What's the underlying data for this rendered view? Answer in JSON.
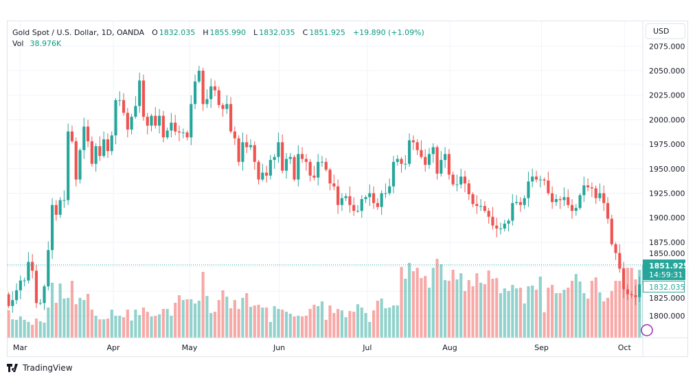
{
  "legend": {
    "symbol": "Gold Spot / U.S. Dollar, 1D, OANDA",
    "o_label": "O",
    "o": "1832.035",
    "h_label": "H",
    "h": "1855.990",
    "l_label": "L",
    "l": "1832.035",
    "c_label": "C",
    "c": "1851.925",
    "change": "+19.890 (+1.09%)",
    "vol_label": "Vol",
    "vol": "38.976K"
  },
  "currency_button": "USD",
  "last_price": "1851.925",
  "countdown": "14:59:31",
  "prev_close": "1832.035",
  "branding": "TradingView",
  "colors": {
    "up": "#26a69a",
    "down": "#ef5350",
    "text_value": "#089981"
  },
  "chart_data": {
    "type": "candlestick",
    "title": "Gold Spot / U.S. Dollar, 1D, OANDA",
    "ylim": [
      1780,
      2080
    ],
    "y_ticks": [
      "2075.000",
      "2050.000",
      "2025.000",
      "2000.000",
      "1975.000",
      "1950.000",
      "1925.000",
      "1900.000",
      "1875.000",
      "1850.000",
      "1825.000",
      "1800.000"
    ],
    "x_ticks": [
      {
        "label": "Mar",
        "index": 2.9
      },
      {
        "label": "Apr",
        "index": 26.4
      },
      {
        "label": "May",
        "index": 45.6
      },
      {
        "label": "Jun",
        "index": 68.2
      },
      {
        "label": "Jul",
        "index": 90.4
      },
      {
        "label": "Aug",
        "index": 111.2
      },
      {
        "label": "Sep",
        "index": 134.3
      },
      {
        "label": "Oct",
        "index": 155.2
      }
    ],
    "first_open": 1822,
    "close": [
      1810,
      1816,
      1826,
      1836,
      1836,
      1855,
      1846,
      1813,
      1813,
      1830,
      1867,
      1913,
      1903,
      1918,
      1918,
      1988,
      1978,
      1939,
      1969,
      1993,
      1978,
      1955,
      1973,
      1963,
      1980,
      1968,
      1984,
      2020,
      2020,
      2007,
      1990,
      2003,
      2014,
      2040,
      2003,
      1994,
      2004,
      1994,
      2004,
      1982,
      1989,
      1997,
      1988,
      1987,
      1987,
      1982,
      2016,
      2039,
      2050,
      2016,
      2021,
      2034,
      2030,
      2015,
      2011,
      2016,
      1988,
      1981,
      1957,
      1977,
      1972,
      1974,
      1957,
      1939,
      1946,
      1943,
      1959,
      1962,
      1977,
      1948,
      1960,
      1962,
      1939,
      1965,
      1960,
      1957,
      1943,
      1941,
      1957,
      1957,
      1949,
      1935,
      1932,
      1913,
      1920,
      1922,
      1913,
      1907,
      1907,
      1919,
      1921,
      1925,
      1915,
      1911,
      1925,
      1925,
      1932,
      1957,
      1960,
      1955,
      1955,
      1979,
      1977,
      1969,
      1962,
      1954,
      1965,
      1972,
      1945,
      1959,
      1965,
      1944,
      1934,
      1934,
      1942,
      1935,
      1924,
      1914,
      1912,
      1912,
      1907,
      1901,
      1892,
      1889,
      1889,
      1894,
      1897,
      1915,
      1916,
      1913,
      1920,
      1937,
      1942,
      1939,
      1939,
      1938,
      1925,
      1916,
      1919,
      1918,
      1921,
      1913,
      1907,
      1910,
      1923,
      1933,
      1931,
      1930,
      1920,
      1925,
      1915,
      1899,
      1873,
      1864,
      1848,
      1827,
      1822,
      1821,
      1819,
      1832.035,
      1851.925
    ],
    "volume_k": [
      15.6,
      10.5,
      10.2,
      12.1,
      10.2,
      9,
      7.4,
      10.9,
      9.4,
      8.6,
      17.2,
      31.3,
      19.9,
      30.9,
      22.3,
      22.7,
      32.4,
      19.1,
      22.7,
      21.5,
      25,
      16,
      12.5,
      10.5,
      10.5,
      10.9,
      16,
      12.5,
      12.5,
      11.7,
      16,
      9.8,
      16,
      12.9,
      17.2,
      14.8,
      12.1,
      12.5,
      13.3,
      16.4,
      16.4,
      12.5,
      19.9,
      24.2,
      21.5,
      21.9,
      21.9,
      19.5,
      21.1,
      37.5,
      23.8,
      14.1,
      14.8,
      21.5,
      27,
      23.4,
      16.8,
      21.5,
      16.4,
      22.7,
      25.4,
      17.6,
      18.4,
      18.8,
      17.2,
      17.2,
      9,
      18,
      16.4,
      16,
      14.8,
      13.7,
      12.1,
      12.5,
      12.1,
      12.5,
      16.4,
      18.8,
      18,
      20.7,
      10.2,
      18.4,
      14.1,
      16.4,
      15.6,
      11.7,
      15.2,
      14.8,
      19.1,
      17.2,
      14.1,
      9,
      15.6,
      21.1,
      22.3,
      16.8,
      17.2,
      18.4,
      18.4,
      40.2,
      33.6,
      42.6,
      37.9,
      39.8,
      34,
      35.2,
      28.5,
      39.8,
      44.9,
      41.8,
      32.8,
      32.4,
      38.7,
      33.2,
      36.7,
      26.6,
      32.8,
      29.3,
      36.7,
      31.3,
      30.5,
      38.3,
      33.6,
      34,
      25.4,
      28.1,
      26.6,
      30.1,
      28.1,
      28.5,
      19.5,
      29.3,
      29.7,
      27.3,
      34.8,
      14.5,
      28.5,
      30.1,
      25.4,
      25.4,
      27.3,
      28.5,
      32.4,
      36.3,
      32,
      25.4,
      22.3,
      32.4,
      34.4,
      25.8,
      20.7,
      22.7,
      26.6,
      32.4,
      32.4,
      39.8,
      39.8,
      39.8,
      33.2,
      38.7,
      38.976
    ],
    "last_candle": {
      "open": 1832.035,
      "high": 1855.99,
      "low": 1832.035,
      "close": 1851.925
    },
    "grid": true
  }
}
